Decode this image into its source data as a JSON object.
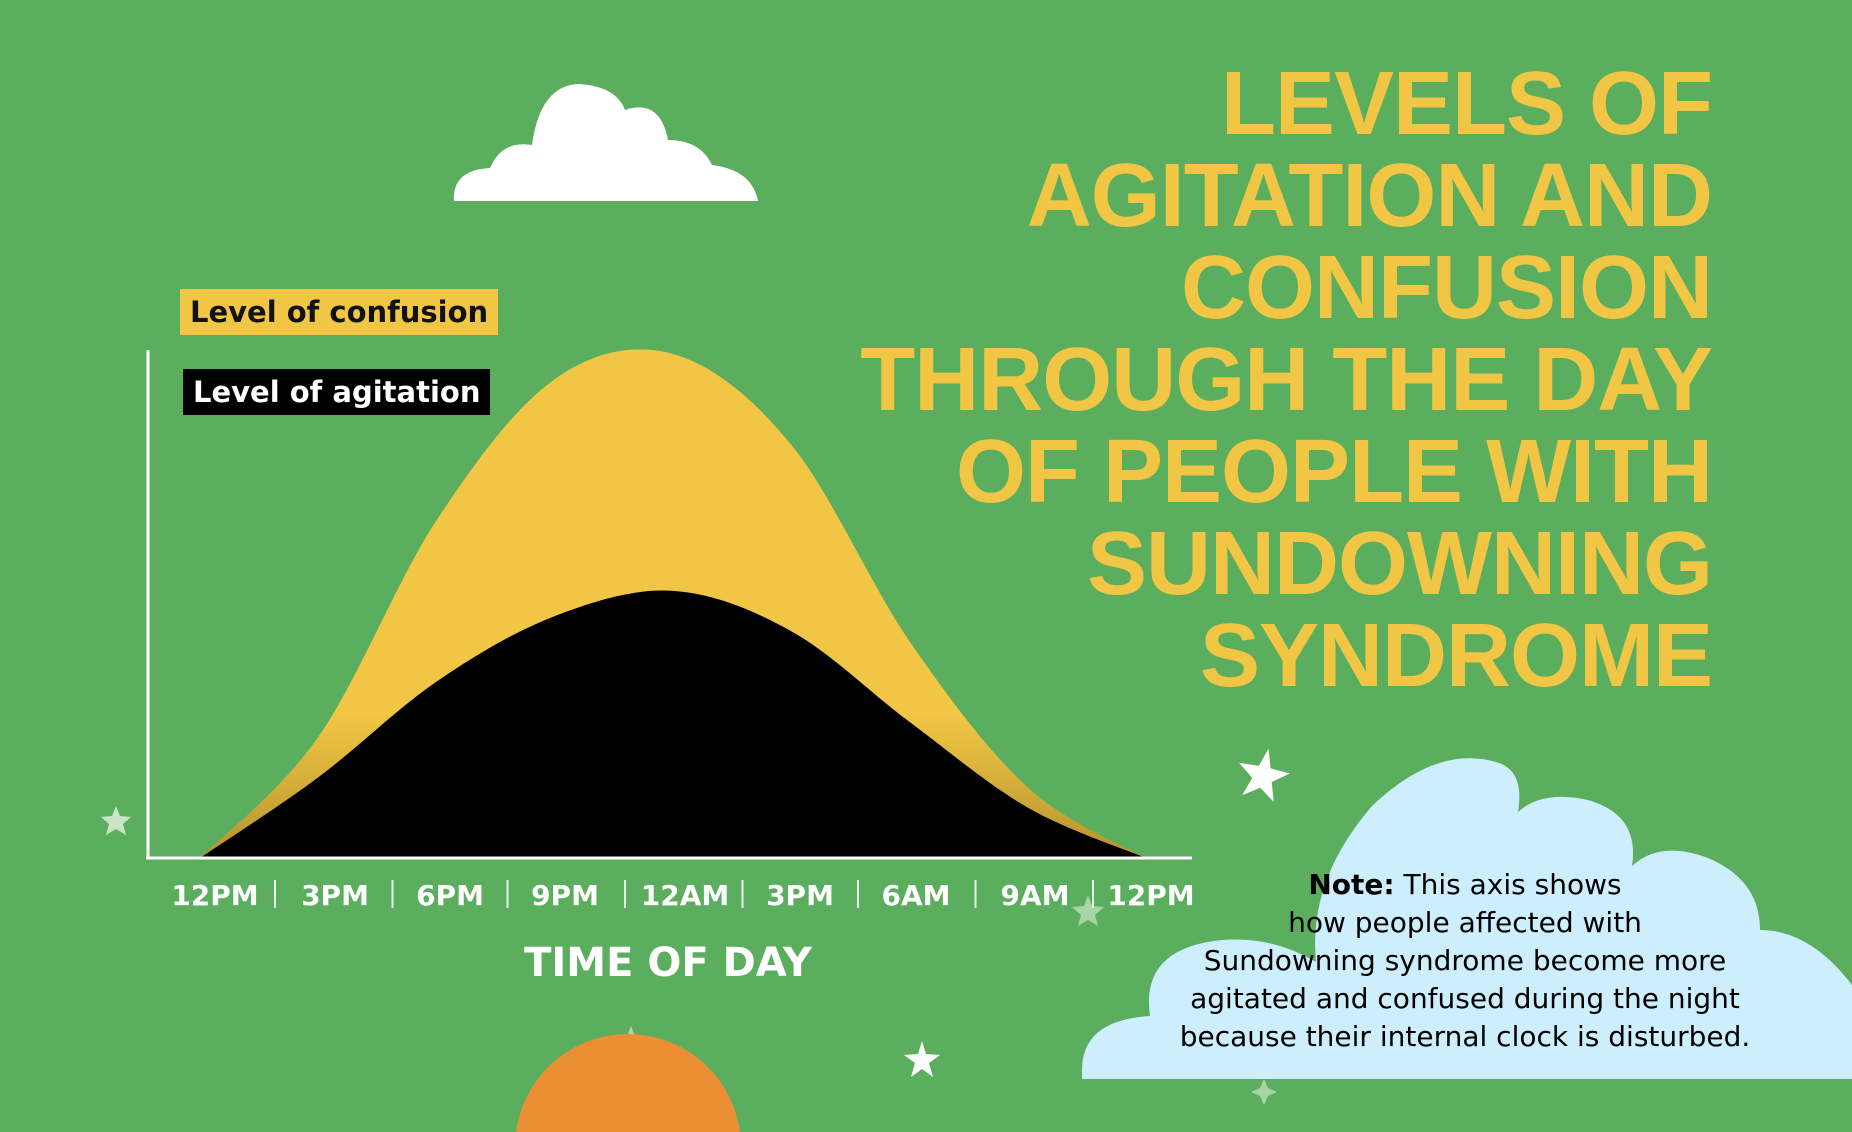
{
  "title_lines": [
    "LEVELS OF",
    "AGITATION AND",
    "CONFUSION",
    "THROUGH THE DAY",
    "OF PEOPLE WITH",
    "SUNDOWNING",
    "SYNDROME"
  ],
  "note": {
    "label": "Note:",
    "lines": [
      "This axis shows",
      "how people affected with",
      "Sundowning syndrome become more",
      "agitated and confused during the night",
      "because their internal clock is disturbed."
    ]
  },
  "colors": {
    "background": "#5cae5f",
    "confusion": "#f1c644",
    "agitation": "#000000",
    "cloud_white": "#ffffff",
    "cloud_blue": "#cdeefc",
    "sun": "#eb8f34"
  },
  "chart_data": {
    "type": "area",
    "categories": [
      "12PM",
      "3PM",
      "6PM",
      "9PM",
      "12AM",
      "3PM",
      "6AM",
      "9AM",
      "12PM"
    ],
    "xlabel": "TIME OF DAY",
    "ylabel": "",
    "ylim": [
      0,
      100
    ],
    "grid": false,
    "legend_placement": "top-left",
    "series": [
      {
        "name": "Level of confusion",
        "values": [
          0,
          24,
          67,
          95,
          100,
          82,
          43,
          14,
          0
        ]
      },
      {
        "name": "Level of agitation",
        "values": [
          0,
          16,
          35,
          48,
          53,
          45,
          27,
          10,
          0
        ]
      }
    ]
  }
}
